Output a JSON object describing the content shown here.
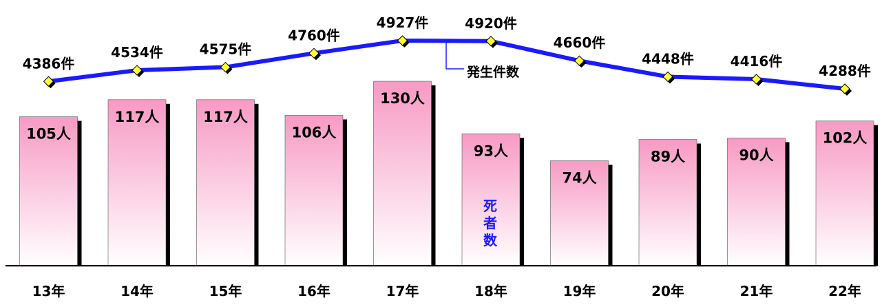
{
  "chart_data": {
    "type": "bar",
    "categories": [
      "13年",
      "14年",
      "15年",
      "16年",
      "17年",
      "18年",
      "19年",
      "20年",
      "21年",
      "22年"
    ],
    "series": [
      {
        "name": "死者数",
        "type": "bar",
        "values": [
          105,
          117,
          117,
          106,
          130,
          93,
          74,
          89,
          90,
          102
        ],
        "labels": [
          "105人",
          "117人",
          "117人",
          "106人",
          "130人",
          "93人",
          "74人",
          "89人",
          "90人",
          "102人"
        ]
      },
      {
        "name": "発生件数",
        "type": "line",
        "values": [
          4386,
          4534,
          4575,
          4760,
          4927,
          4920,
          4660,
          4448,
          4416,
          4288
        ],
        "labels": [
          "4386件",
          "4534件",
          "4575件",
          "4760件",
          "4927件",
          "4920件",
          "4660件",
          "4448件",
          "4416件",
          "4288件"
        ]
      }
    ],
    "bar_label_text": "死者数",
    "line_label_text": "発生件数",
    "title": "",
    "xlabel": "",
    "ylabel": "",
    "grid": false,
    "colors": {
      "bar_top": "#f79ac4",
      "bar_bottom": "#ffffff",
      "bar_shadow": "#000000",
      "line": "#1a1aff",
      "marker": "#ffff33",
      "bar_series_label": "#1a1aff"
    }
  }
}
